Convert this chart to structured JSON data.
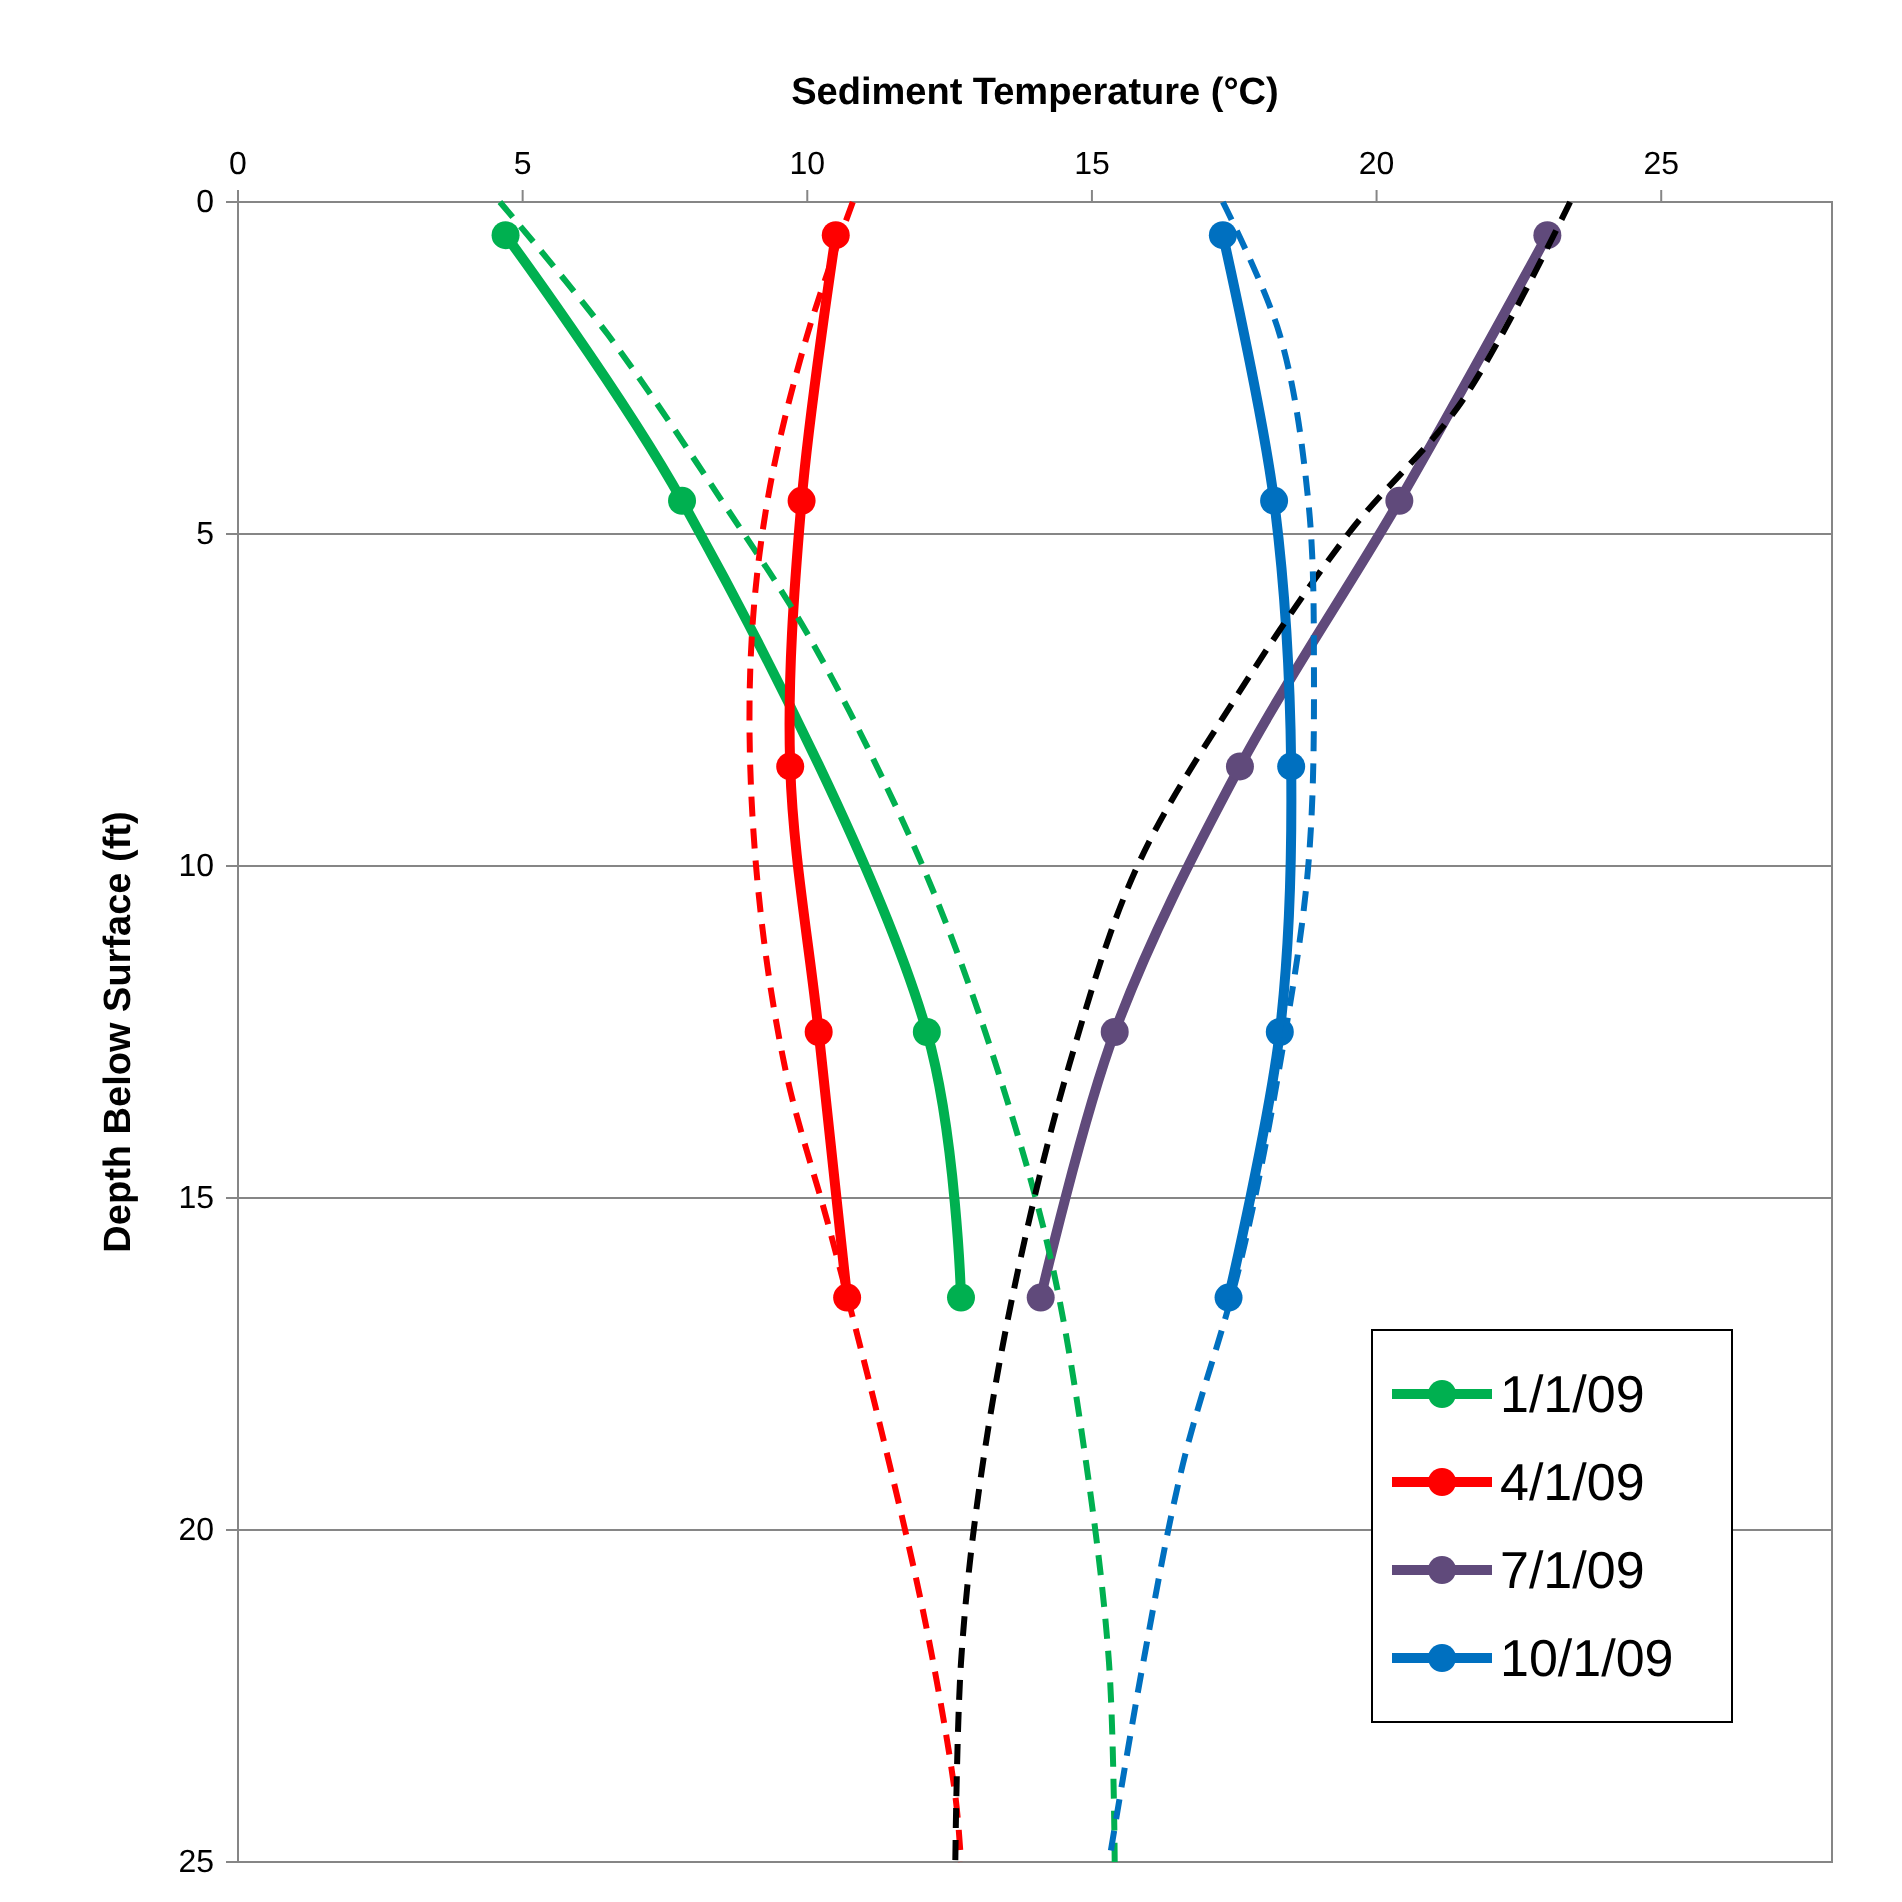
{
  "chart_data": {
    "type": "line",
    "xlabel": "Sediment Temperature (°C)",
    "ylabel": "Depth Below Surface (ft)",
    "xlim": [
      0,
      28
    ],
    "xticks": [
      0,
      5,
      10,
      15,
      20,
      25
    ],
    "ylim": [
      25,
      0
    ],
    "yticks": [
      0,
      5,
      10,
      15,
      20,
      25
    ],
    "grid": "y",
    "legend": "bottom right",
    "series": [
      {
        "name": "1/1/09",
        "color": "#00b050",
        "marker": "circle",
        "line_style": "solid",
        "x": [
          4.7,
          7.8,
          12.1,
          12.7
        ],
        "values": [
          0.5,
          4.5,
          12.5,
          16.5
        ]
      },
      {
        "name": "4/1/09",
        "color": "#ff0000",
        "marker": "circle",
        "line_style": "solid",
        "x": [
          10.5,
          9.9,
          9.7,
          10.2,
          10.7
        ],
        "values": [
          0.5,
          4.5,
          8.5,
          12.5,
          16.5
        ]
      },
      {
        "name": "7/1/09",
        "color": "#604a7b",
        "marker": "circle",
        "line_style": "solid",
        "x": [
          23.0,
          20.4,
          17.6,
          15.4,
          14.1
        ],
        "values": [
          0.5,
          4.5,
          8.5,
          12.5,
          16.5
        ]
      },
      {
        "name": "10/1/09",
        "color": "#0070c0",
        "marker": "circle",
        "line_style": "solid",
        "x": [
          17.3,
          18.2,
          18.5,
          18.3,
          17.4
        ],
        "values": [
          0.5,
          4.5,
          8.5,
          12.5,
          16.5
        ]
      },
      {
        "color": "#00b050",
        "marker": "none",
        "line_style": "dashed",
        "x": [
          4.6,
          6.5,
          8.5,
          10,
          11.5,
          12.5,
          13.5,
          14.3,
          14.9,
          15.3,
          15.4
        ],
        "values": [
          0,
          2,
          4.5,
          6.5,
          9,
          11,
          13.5,
          16,
          19,
          22,
          25
        ]
      },
      {
        "color": "#ff0000",
        "marker": "none",
        "line_style": "dashed",
        "x": [
          10.8,
          10,
          9.3,
          9.0,
          9.1,
          9.6,
          10.4,
          11.3,
          12.1,
          12.6,
          12.7
        ],
        "values": [
          0,
          2,
          4.5,
          7,
          10,
          13,
          15.5,
          18.5,
          21.5,
          24,
          25
        ]
      },
      {
        "color": "#000000",
        "marker": "none",
        "line_style": "dashed",
        "x": [
          23.4,
          21.5,
          19.5,
          17.5,
          15.8,
          14.6,
          13.6,
          13.0,
          12.7,
          12.6
        ],
        "values": [
          0,
          3,
          5,
          7.5,
          10,
          13,
          16.5,
          19.5,
          22,
          25
        ]
      },
      {
        "color": "#0070c0",
        "marker": "none",
        "line_style": "dashed",
        "x": [
          17.3,
          18.3,
          18.8,
          18.9,
          18.8,
          18.3,
          17.6,
          16.6,
          15.9,
          15.3
        ],
        "values": [
          0,
          2,
          4.5,
          7,
          10,
          13,
          16,
          19,
          22,
          25
        ]
      }
    ]
  }
}
